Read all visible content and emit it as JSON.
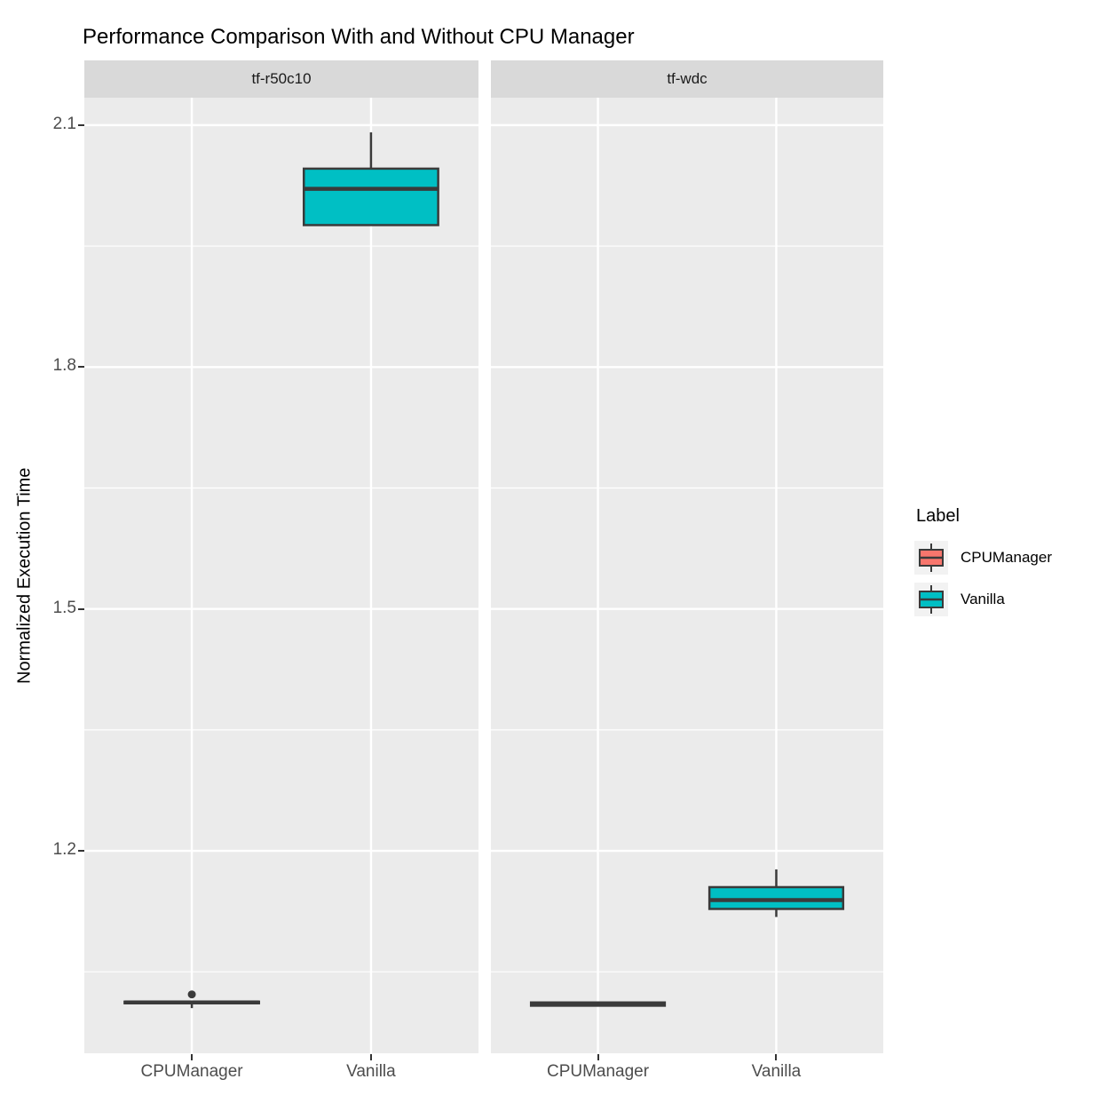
{
  "title": "Performance Comparison With and Without CPU Manager",
  "chart_data": {
    "type": "boxplot",
    "title": "Performance Comparison With and Without CPU Manager",
    "xlabel": "",
    "ylabel": "Normalized Execution Time",
    "grid": true,
    "legend_position": "right",
    "background": {
      "panel": "#EBEBEB",
      "strip": "#D9D9D9",
      "grid": "#FFFFFF"
    },
    "box_stroke": "#3A3A3A",
    "ylim": [
      0.949,
      2.134
    ],
    "y_ticks": [
      2.1,
      1.8,
      1.5,
      1.2
    ],
    "y_minor": [
      1.95,
      1.65,
      1.35,
      1.05
    ],
    "categories": [
      "CPUManager",
      "Vanilla"
    ],
    "series_colors": {
      "CPUManager": "#F8766D",
      "Vanilla": "#00BFC4"
    },
    "facets": [
      {
        "label": "tf-r50c10",
        "boxes": [
          {
            "category": "CPUManager",
            "group": "CPUManager",
            "low": 1.005,
            "q1": 1.011,
            "median": 1.012,
            "q3": 1.013,
            "high": 1.013,
            "outliers": [
              1.022
            ]
          },
          {
            "category": "Vanilla",
            "group": "Vanilla",
            "low": 1.976,
            "q1": 1.976,
            "median": 2.021,
            "q3": 2.046,
            "high": 2.091,
            "outliers": []
          }
        ]
      },
      {
        "label": "tf-wdc",
        "boxes": [
          {
            "category": "CPUManager",
            "group": "CPUManager",
            "low": 1.007,
            "q1": 1.008,
            "median": 1.01,
            "q3": 1.012,
            "high": 1.013,
            "outliers": []
          },
          {
            "category": "Vanilla",
            "group": "Vanilla",
            "low": 1.118,
            "q1": 1.128,
            "median": 1.139,
            "q3": 1.155,
            "high": 1.177,
            "outliers": []
          }
        ]
      }
    ],
    "legend": {
      "title": "Label",
      "entries": [
        {
          "label": "CPUManager",
          "color": "#F8766D"
        },
        {
          "label": "Vanilla",
          "color": "#00BFC4"
        }
      ]
    }
  }
}
